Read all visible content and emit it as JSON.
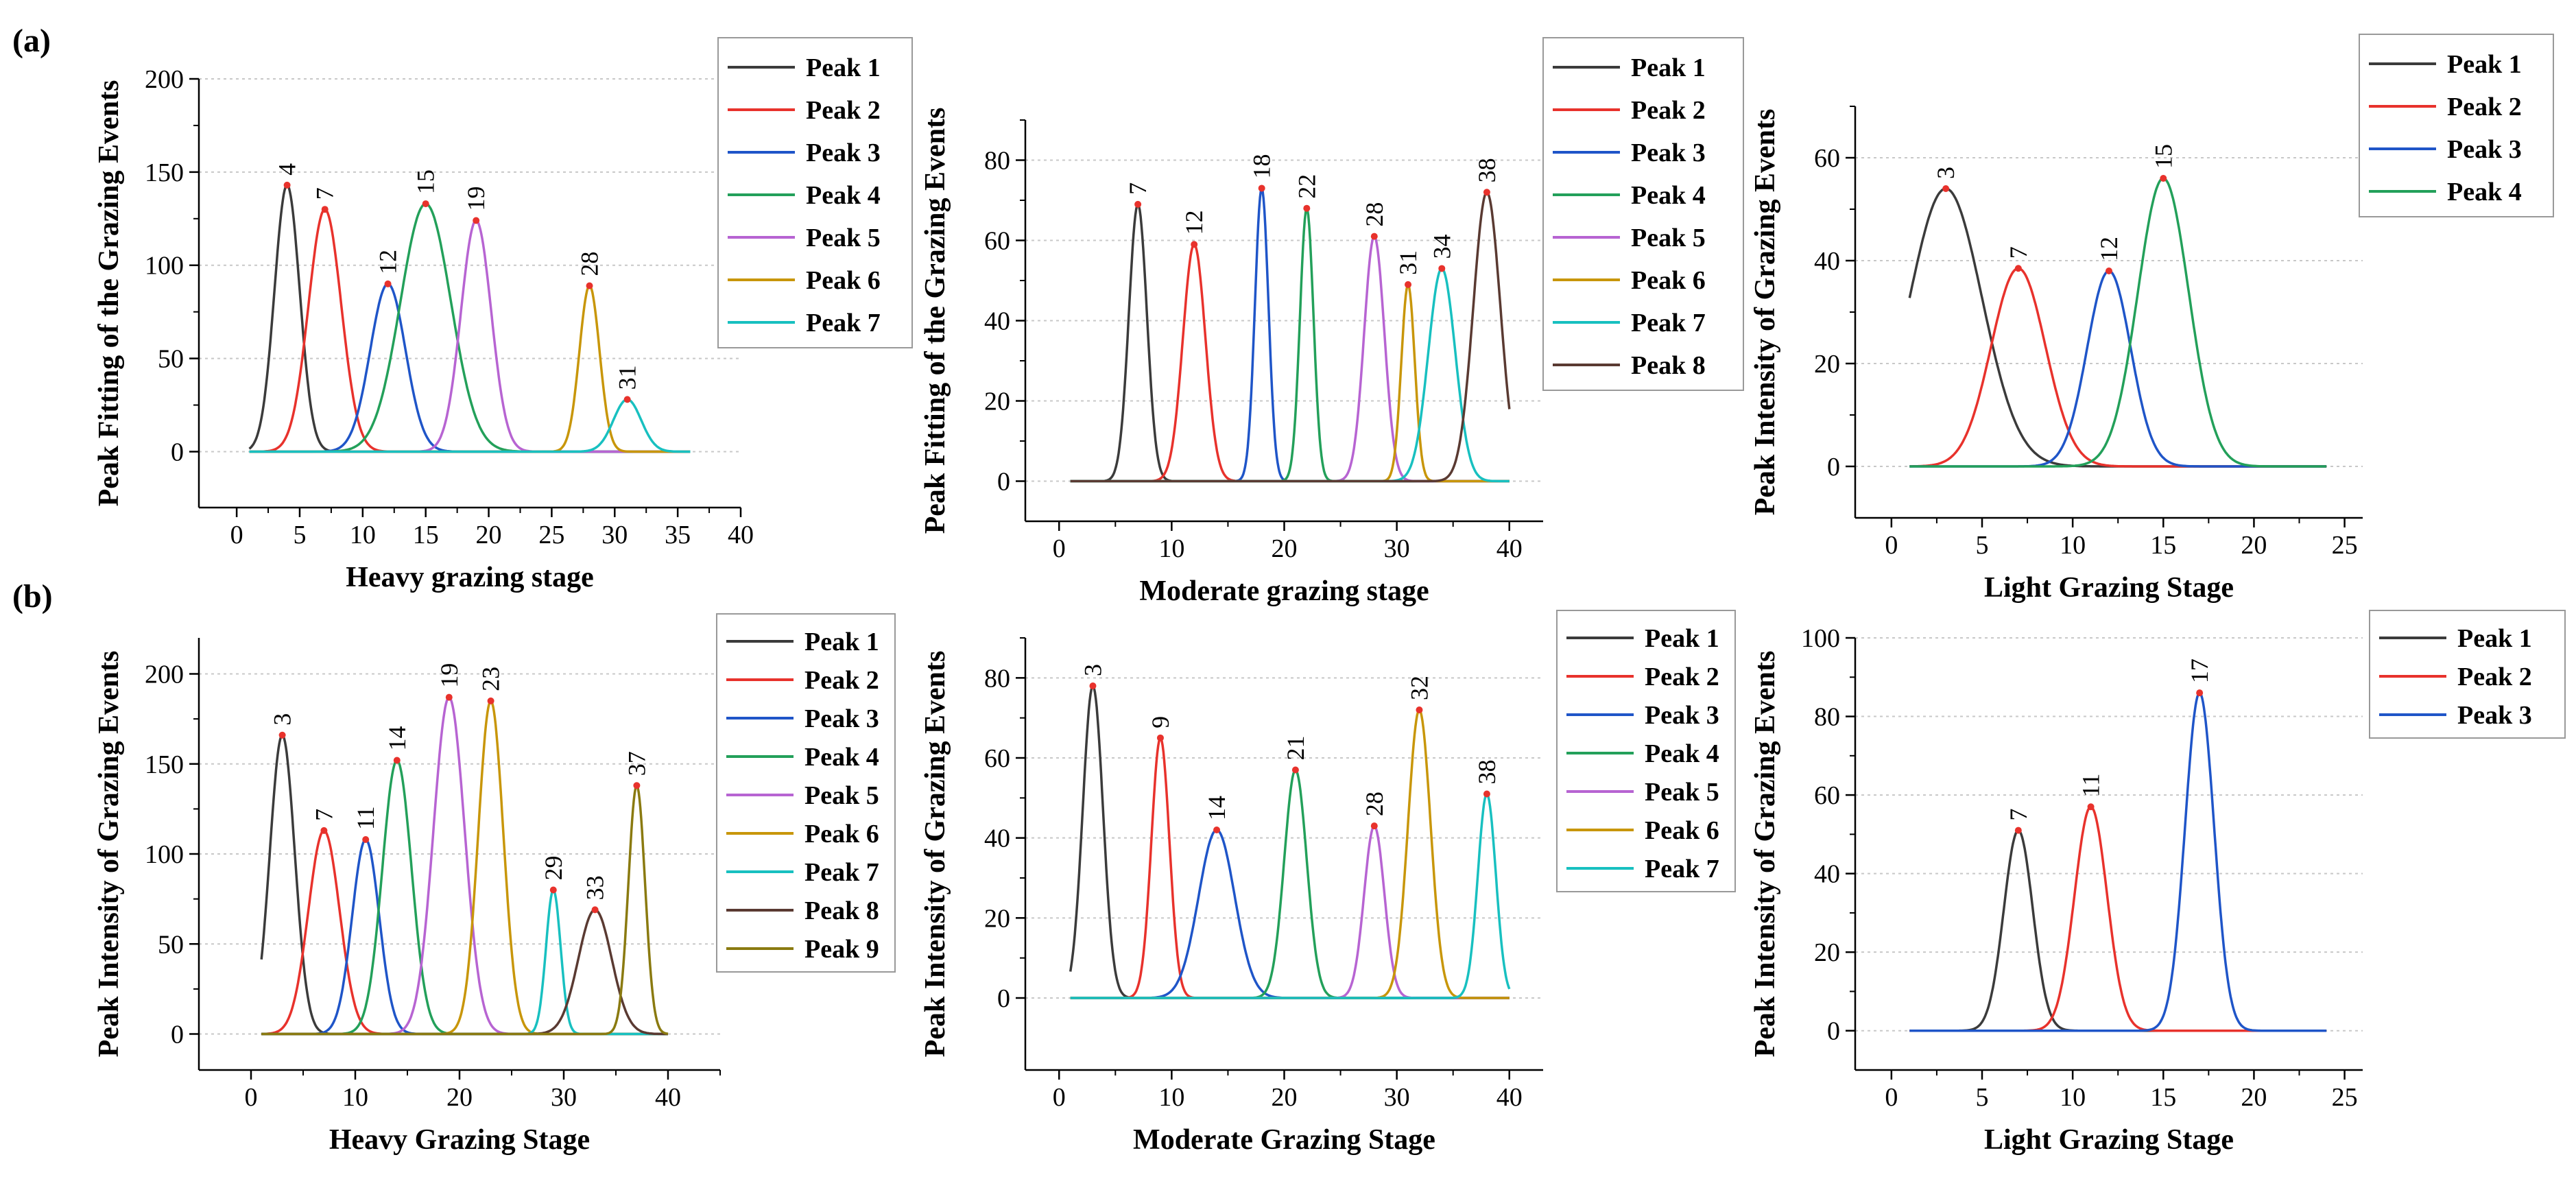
{
  "figure": {
    "panel_labels": [
      "(a)",
      "(b)"
    ]
  },
  "chart_data": [
    {
      "type": "line",
      "panel": "(a)",
      "xlabel": "Heavy grazing stage",
      "ylabel": "Peak Fitting of the Grazing Events",
      "xlim": [
        -3,
        40
      ],
      "ylim": [
        -30,
        200
      ],
      "xticks": [
        0,
        5,
        10,
        15,
        20,
        25,
        30,
        35,
        40
      ],
      "yticks": [
        0,
        50,
        100,
        150,
        200
      ],
      "grid_y": true,
      "legend_position": "top-right",
      "x_range": [
        1,
        36
      ],
      "series": [
        {
          "name": "Peak 1",
          "color": "#3b3b3b",
          "center": 4,
          "amplitude": 143,
          "width": 1.0,
          "label": "4"
        },
        {
          "name": "Peak 2",
          "color": "#e8322c",
          "center": 7,
          "amplitude": 130,
          "width": 1.3,
          "label": "7"
        },
        {
          "name": "Peak 3",
          "color": "#1f55c8",
          "center": 12,
          "amplitude": 90,
          "width": 1.4,
          "label": "12"
        },
        {
          "name": "Peak 4",
          "color": "#23a05a",
          "center": 15,
          "amplitude": 133,
          "width": 2.0,
          "label": "15"
        },
        {
          "name": "Peak 5",
          "color": "#b764d2",
          "center": 19,
          "amplitude": 124,
          "width": 1.2,
          "label": "19"
        },
        {
          "name": "Peak 6",
          "color": "#c8960a",
          "center": 28,
          "amplitude": 89,
          "width": 0.8,
          "label": "28"
        },
        {
          "name": "Peak 7",
          "color": "#18c0c0",
          "center": 31,
          "amplitude": 28,
          "width": 1.1,
          "label": "31"
        }
      ]
    },
    {
      "type": "line",
      "panel": "(a)",
      "xlabel": "Moderate grazing stage",
      "ylabel": "Peak Fitting of the Grazing Events",
      "xlim": [
        -3,
        43
      ],
      "ylim": [
        -10,
        90
      ],
      "xticks": [
        0,
        10,
        20,
        30,
        40
      ],
      "yticks": [
        0,
        20,
        40,
        60,
        80
      ],
      "grid_y": true,
      "legend_position": "top-right",
      "x_range": [
        1,
        40
      ],
      "series": [
        {
          "name": "Peak 1",
          "color": "#3b3b3b",
          "center": 7,
          "amplitude": 69,
          "width": 0.8,
          "label": "7"
        },
        {
          "name": "Peak 2",
          "color": "#e8322c",
          "center": 12,
          "amplitude": 59,
          "width": 1.0,
          "label": "12"
        },
        {
          "name": "Peak 3",
          "color": "#1f55c8",
          "center": 18,
          "amplitude": 73,
          "width": 0.6,
          "label": "18"
        },
        {
          "name": "Peak 4",
          "color": "#23a05a",
          "center": 22,
          "amplitude": 68,
          "width": 0.6,
          "label": "22"
        },
        {
          "name": "Peak 5",
          "color": "#b764d2",
          "center": 28,
          "amplitude": 61,
          "width": 0.9,
          "label": "28"
        },
        {
          "name": "Peak 6",
          "color": "#c8960a",
          "center": 31,
          "amplitude": 49,
          "width": 0.6,
          "label": "31"
        },
        {
          "name": "Peak 7",
          "color": "#18c0c0",
          "center": 34,
          "amplitude": 53,
          "width": 1.2,
          "label": "34"
        },
        {
          "name": "Peak 8",
          "color": "#5a3a32",
          "center": 38,
          "amplitude": 72,
          "width": 1.2,
          "label": "38"
        }
      ]
    },
    {
      "type": "line",
      "panel": "(a)",
      "xlabel": "Light Grazing Stage",
      "ylabel": "Peak Intensity of Grazing Events",
      "xlim": [
        -2,
        26
      ],
      "ylim": [
        -10,
        70
      ],
      "xticks": [
        0,
        5,
        10,
        15,
        20,
        25
      ],
      "yticks": [
        0,
        20,
        40,
        60
      ],
      "grid_y": true,
      "legend_position": "top-right",
      "x_range": [
        1,
        24
      ],
      "series": [
        {
          "name": "Peak 1",
          "color": "#3b3b3b",
          "center": 3,
          "amplitude": 54,
          "width": 2.0,
          "label": "3"
        },
        {
          "name": "Peak 2",
          "color": "#e8322c",
          "center": 7,
          "amplitude": 38.5,
          "width": 1.5,
          "label": "7"
        },
        {
          "name": "Peak 3",
          "color": "#1f55c8",
          "center": 12,
          "amplitude": 38,
          "width": 1.2,
          "label": "12"
        },
        {
          "name": "Peak 4",
          "color": "#23a05a",
          "center": 15,
          "amplitude": 56,
          "width": 1.4,
          "label": "15"
        }
      ]
    },
    {
      "type": "line",
      "panel": "(b)",
      "xlabel": "Heavy Grazing Stage",
      "ylabel": "Peak Intensity of Grazing Events",
      "xlim": [
        -5,
        45
      ],
      "ylim": [
        -20,
        220
      ],
      "xticks": [
        0,
        10,
        20,
        30,
        40
      ],
      "yticks": [
        0,
        50,
        100,
        150,
        200
      ],
      "grid_y": true,
      "legend_position": "top-right",
      "x_range": [
        1,
        40
      ],
      "series": [
        {
          "name": "Peak 1",
          "color": "#3b3b3b",
          "center": 3,
          "amplitude": 166,
          "width": 1.2,
          "label": "3"
        },
        {
          "name": "Peak 2",
          "color": "#e8322c",
          "center": 7,
          "amplitude": 113,
          "width": 1.5,
          "label": "7"
        },
        {
          "name": "Peak 3",
          "color": "#1f55c8",
          "center": 11,
          "amplitude": 108,
          "width": 1.3,
          "label": "11"
        },
        {
          "name": "Peak 4",
          "color": "#23a05a",
          "center": 14,
          "amplitude": 152,
          "width": 1.4,
          "label": "14"
        },
        {
          "name": "Peak 5",
          "color": "#b764d2",
          "center": 19,
          "amplitude": 187,
          "width": 1.5,
          "label": "19"
        },
        {
          "name": "Peak 6",
          "color": "#c8960a",
          "center": 23,
          "amplitude": 185,
          "width": 1.2,
          "label": "23"
        },
        {
          "name": "Peak 7",
          "color": "#18c0c0",
          "center": 29,
          "amplitude": 80,
          "width": 0.7,
          "label": "29"
        },
        {
          "name": "Peak 8",
          "color": "#5a3a32",
          "center": 33,
          "amplitude": 69,
          "width": 1.6,
          "label": "33"
        },
        {
          "name": "Peak 9",
          "color": "#8a7a10",
          "center": 37,
          "amplitude": 138,
          "width": 0.8,
          "label": "37"
        }
      ]
    },
    {
      "type": "line",
      "panel": "(b)",
      "xlabel": "Moderate Grazing Stage",
      "ylabel": "Peak Intensity of Grazing Events",
      "xlim": [
        -3,
        43
      ],
      "ylim": [
        -18,
        90
      ],
      "xticks": [
        0,
        10,
        20,
        30,
        40
      ],
      "yticks": [
        0,
        20,
        40,
        60,
        80
      ],
      "grid_y": true,
      "legend_position": "top-right",
      "x_range": [
        1,
        40
      ],
      "series": [
        {
          "name": "Peak 1",
          "color": "#3b3b3b",
          "center": 3,
          "amplitude": 78,
          "width": 0.9,
          "label": "3"
        },
        {
          "name": "Peak 2",
          "color": "#e8322c",
          "center": 9,
          "amplitude": 65,
          "width": 0.8,
          "label": "9"
        },
        {
          "name": "Peak 3",
          "color": "#1f55c8",
          "center": 14,
          "amplitude": 42,
          "width": 1.6,
          "label": "14"
        },
        {
          "name": "Peak 4",
          "color": "#23a05a",
          "center": 21,
          "amplitude": 57,
          "width": 1.0,
          "label": "21"
        },
        {
          "name": "Peak 5",
          "color": "#b764d2",
          "center": 28,
          "amplitude": 43,
          "width": 0.9,
          "label": "28"
        },
        {
          "name": "Peak 6",
          "color": "#c8960a",
          "center": 32,
          "amplitude": 72,
          "width": 1.0,
          "label": "32"
        },
        {
          "name": "Peak 7",
          "color": "#18c0c0",
          "center": 38,
          "amplitude": 51,
          "width": 0.8,
          "label": "38"
        }
      ]
    },
    {
      "type": "line",
      "panel": "(b)",
      "xlabel": "Light Grazing Stage",
      "ylabel": "Peak Intensity of Grazing Events",
      "xlim": [
        -2,
        26
      ],
      "ylim": [
        -10,
        100
      ],
      "xticks": [
        0,
        5,
        10,
        15,
        20,
        25
      ],
      "yticks": [
        0,
        20,
        40,
        60,
        80,
        100
      ],
      "grid_y": true,
      "legend_position": "top-right",
      "x_range": [
        1,
        24
      ],
      "series": [
        {
          "name": "Peak 1",
          "color": "#3b3b3b",
          "center": 7,
          "amplitude": 51,
          "width": 0.8,
          "label": "7"
        },
        {
          "name": "Peak 2",
          "color": "#e8322c",
          "center": 11,
          "amplitude": 57,
          "width": 0.9,
          "label": "11"
        },
        {
          "name": "Peak 3",
          "color": "#1f55c8",
          "center": 17,
          "amplitude": 86,
          "width": 0.8,
          "label": "17"
        }
      ]
    }
  ]
}
